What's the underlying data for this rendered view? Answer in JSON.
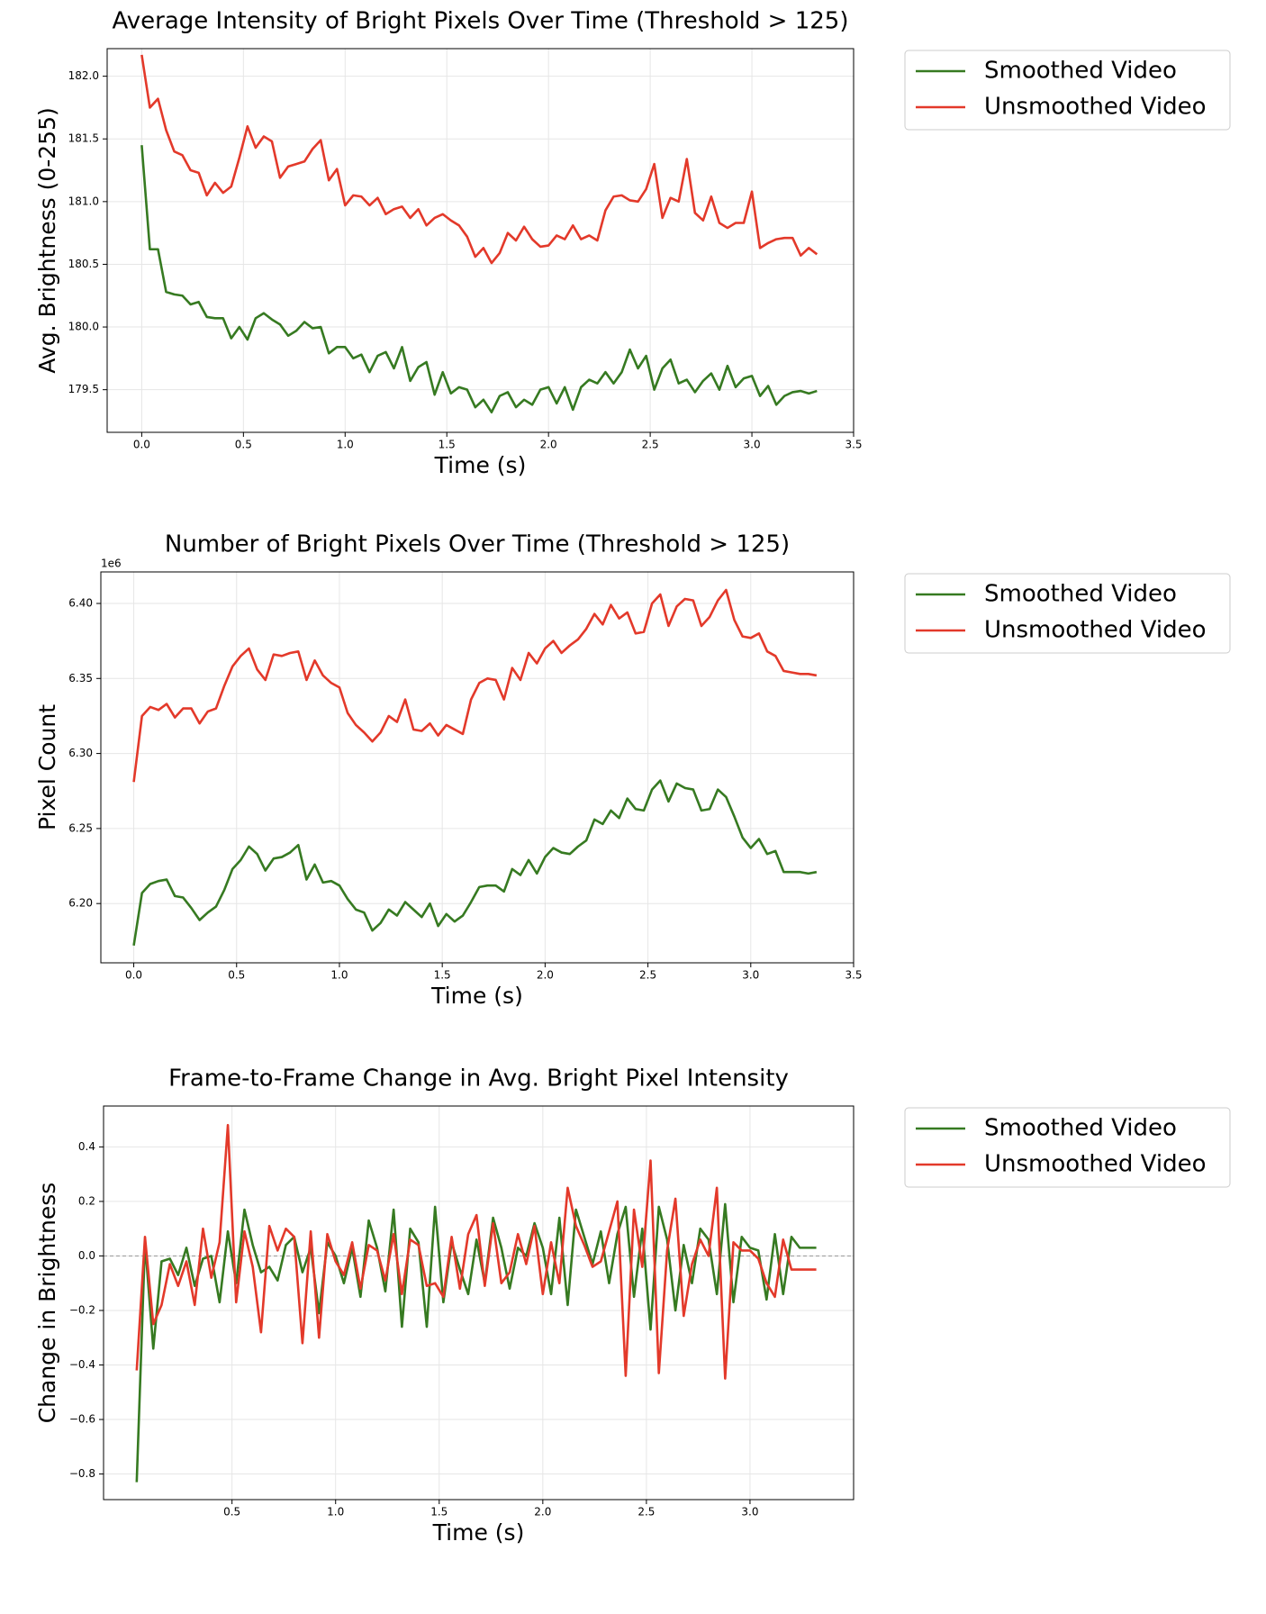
{
  "chart_data": [
    {
      "type": "line",
      "title": "Average Intensity of Bright Pixels Over Time (Threshold > 125)",
      "xlabel": "Time (s)",
      "ylabel": "Avg. Brightness (0-255)",
      "grid": true,
      "legend": "right",
      "x": [
        0,
        0.04,
        0.08,
        0.12,
        0.16,
        0.2,
        0.24,
        0.28,
        0.32,
        0.36,
        0.4,
        0.44,
        0.48,
        0.52,
        0.56,
        0.6,
        0.64,
        0.68,
        0.72,
        0.76,
        0.8,
        0.84,
        0.88,
        0.92,
        0.96,
        1,
        1.04,
        1.08,
        1.12,
        1.16,
        1.2,
        1.24,
        1.28,
        1.32,
        1.36,
        1.4,
        1.44,
        1.48,
        1.52,
        1.56,
        1.6,
        1.64,
        1.68,
        1.72,
        1.76,
        1.8,
        1.84,
        1.88,
        1.92,
        1.96,
        2,
        2.04,
        2.08,
        2.12,
        2.16,
        2.2,
        2.24,
        2.28,
        2.32,
        2.36,
        2.4,
        2.44,
        2.48,
        2.52,
        2.56,
        2.6,
        2.64,
        2.68,
        2.72,
        2.76,
        2.8,
        2.84,
        2.88,
        2.92,
        2.96,
        3,
        3.04,
        3.08,
        3.12,
        3.16,
        3.2,
        3.24,
        3.28,
        3.32
      ],
      "xlim": [
        -0.17,
        3.5
      ],
      "xticks": [
        {
          "value": 0,
          "label": "0.0"
        },
        0.5,
        {
          "value": 1,
          "label": "1.0"
        },
        1.5,
        {
          "value": 2,
          "label": "2.0"
        },
        2.5,
        {
          "value": 3,
          "label": "3.0"
        },
        3.5
      ],
      "ylim": [
        179.16,
        182.22
      ],
      "yticks": [
        179.5,
        {
          "value": 180,
          "label": "180.0"
        },
        180.5,
        {
          "value": 181,
          "label": "181.0"
        },
        181.5,
        {
          "value": 182,
          "label": "182.0"
        }
      ],
      "series": [
        {
          "name": "Smoothed Video",
          "color": "#367a21",
          "values": [
            181.45,
            180.62,
            180.62,
            180.28,
            180.26,
            180.25,
            180.18,
            180.2,
            180.08,
            180.07,
            180.07,
            179.91,
            180.0,
            179.9,
            180.07,
            180.11,
            180.06,
            180.02,
            179.93,
            179.97,
            180.04,
            179.99,
            180.0,
            179.79,
            179.84,
            179.84,
            179.75,
            179.78,
            179.64,
            179.77,
            179.8,
            179.67,
            179.84,
            179.57,
            179.68,
            179.72,
            179.46,
            179.64,
            179.47,
            179.52,
            179.5,
            179.36,
            179.42,
            179.32,
            179.45,
            179.48,
            179.36,
            179.42,
            179.38,
            179.5,
            179.52,
            179.39,
            179.52,
            179.34,
            179.52,
            179.58,
            179.55,
            179.64,
            179.55,
            179.64,
            179.82,
            179.67,
            179.77,
            179.5,
            179.67,
            179.74,
            179.55,
            179.58,
            179.48,
            179.57,
            179.63,
            179.5,
            179.69,
            179.52,
            179.59,
            179.61,
            179.45,
            179.53,
            179.38,
            179.45,
            179.48,
            179.49,
            179.47,
            179.49
          ]
        },
        {
          "name": "Unsmoothed Video",
          "color": "#e3392a",
          "values": [
            182.17,
            181.75,
            181.82,
            181.57,
            181.4,
            181.37,
            181.25,
            181.23,
            181.05,
            181.15,
            181.07,
            181.12,
            181.35,
            181.6,
            181.43,
            181.52,
            181.48,
            181.19,
            181.28,
            181.3,
            181.32,
            181.42,
            181.49,
            181.17,
            181.26,
            180.97,
            181.05,
            181.04,
            180.97,
            181.03,
            180.9,
            180.94,
            180.96,
            180.87,
            180.94,
            180.81,
            180.87,
            180.9,
            180.85,
            180.81,
            180.72,
            180.56,
            180.63,
            180.51,
            180.59,
            180.75,
            180.69,
            180.8,
            180.7,
            180.64,
            180.65,
            180.73,
            180.7,
            180.81,
            180.7,
            180.73,
            180.69,
            180.93,
            181.04,
            181.05,
            181.01,
            181.0,
            181.1,
            181.3,
            180.87,
            181.03,
            181.0,
            181.34,
            180.91,
            180.85,
            181.04,
            180.83,
            180.79,
            180.83,
            180.83,
            181.08,
            180.63,
            180.67,
            180.7,
            180.71,
            180.71,
            180.57,
            180.63,
            180.58
          ]
        }
      ]
    },
    {
      "type": "line",
      "title": "Number of Bright Pixels Over Time (Threshold > 125)",
      "xlabel": "Time (s)",
      "ylabel": "Pixel Count",
      "offset_label": "1e6",
      "grid": true,
      "legend": "right",
      "x": [
        0,
        0.04,
        0.08,
        0.12,
        0.16,
        0.2,
        0.24,
        0.28,
        0.32,
        0.36,
        0.4,
        0.44,
        0.48,
        0.52,
        0.56,
        0.6,
        0.64,
        0.68,
        0.72,
        0.76,
        0.8,
        0.84,
        0.88,
        0.92,
        0.96,
        1,
        1.04,
        1.08,
        1.12,
        1.16,
        1.2,
        1.24,
        1.28,
        1.32,
        1.36,
        1.4,
        1.44,
        1.48,
        1.52,
        1.56,
        1.6,
        1.64,
        1.68,
        1.72,
        1.76,
        1.8,
        1.84,
        1.88,
        1.92,
        1.96,
        2,
        2.04,
        2.08,
        2.12,
        2.16,
        2.2,
        2.24,
        2.28,
        2.32,
        2.36,
        2.4,
        2.44,
        2.48,
        2.52,
        2.56,
        2.6,
        2.64,
        2.68,
        2.72,
        2.76,
        2.8,
        2.84,
        2.88,
        2.92,
        2.96,
        3,
        3.04,
        3.08,
        3.12,
        3.16,
        3.2,
        3.24,
        3.28,
        3.32
      ],
      "xlim": [
        -0.16,
        3.5
      ],
      "xticks": [
        {
          "value": 0,
          "label": "0.0"
        },
        0.5,
        {
          "value": 1,
          "label": "1.0"
        },
        1.5,
        {
          "value": 2,
          "label": "2.0"
        },
        2.5,
        {
          "value": 3,
          "label": "3.0"
        },
        3.5
      ],
      "ylim": [
        6.1605,
        6.421
      ],
      "yticks": [
        {
          "value": 6.2,
          "label": "6.20"
        },
        6.25,
        {
          "value": 6.3,
          "label": "6.30"
        },
        6.35,
        {
          "value": 6.4,
          "label": "6.40"
        }
      ],
      "series": [
        {
          "name": "Smoothed Video",
          "color": "#367a21",
          "values": [
            6.172,
            6.207,
            6.213,
            6.215,
            6.216,
            6.205,
            6.204,
            6.197,
            6.189,
            6.194,
            6.198,
            6.209,
            6.223,
            6.229,
            6.238,
            6.233,
            6.222,
            6.23,
            6.231,
            6.234,
            6.239,
            6.216,
            6.226,
            6.214,
            6.215,
            6.212,
            6.203,
            6.196,
            6.194,
            6.182,
            6.187,
            6.196,
            6.192,
            6.201,
            6.196,
            6.191,
            6.2,
            6.185,
            6.193,
            6.188,
            6.192,
            6.201,
            6.211,
            6.212,
            6.212,
            6.208,
            6.223,
            6.219,
            6.229,
            6.22,
            6.231,
            6.237,
            6.234,
            6.233,
            6.238,
            6.242,
            6.256,
            6.253,
            6.262,
            6.257,
            6.27,
            6.263,
            6.262,
            6.276,
            6.282,
            6.268,
            6.28,
            6.277,
            6.276,
            6.262,
            6.263,
            6.276,
            6.271,
            6.258,
            6.244,
            6.237,
            6.243,
            6.233,
            6.235,
            6.221,
            6.221,
            6.221,
            6.22,
            6.221
          ]
        },
        {
          "name": "Unsmoothed Video",
          "color": "#e3392a",
          "values": [
            6.281,
            6.325,
            6.331,
            6.329,
            6.333,
            6.324,
            6.33,
            6.33,
            6.32,
            6.328,
            6.33,
            6.345,
            6.358,
            6.365,
            6.37,
            6.356,
            6.349,
            6.366,
            6.365,
            6.367,
            6.368,
            6.349,
            6.362,
            6.352,
            6.347,
            6.344,
            6.327,
            6.319,
            6.314,
            6.308,
            6.314,
            6.325,
            6.321,
            6.336,
            6.316,
            6.315,
            6.32,
            6.312,
            6.319,
            6.316,
            6.313,
            6.336,
            6.347,
            6.35,
            6.349,
            6.336,
            6.357,
            6.349,
            6.367,
            6.36,
            6.37,
            6.375,
            6.367,
            6.372,
            6.376,
            6.383,
            6.393,
            6.386,
            6.399,
            6.39,
            6.394,
            6.38,
            6.381,
            6.4,
            6.406,
            6.385,
            6.398,
            6.403,
            6.402,
            6.385,
            6.391,
            6.402,
            6.409,
            6.389,
            6.378,
            6.377,
            6.38,
            6.368,
            6.365,
            6.355,
            6.354,
            6.353,
            6.353,
            6.352
          ]
        }
      ]
    },
    {
      "type": "line",
      "title": "Frame-to-Frame Change in Avg. Bright Pixel Intensity",
      "xlabel": "Time (s)",
      "ylabel": "Change in Brightness",
      "grid": true,
      "zero_line": true,
      "legend": "right",
      "x": [
        0.04,
        0.08,
        0.12,
        0.16,
        0.2,
        0.24,
        0.28,
        0.32,
        0.36,
        0.4,
        0.44,
        0.48,
        0.52,
        0.56,
        0.6,
        0.64,
        0.68,
        0.72,
        0.76,
        0.8,
        0.84,
        0.88,
        0.92,
        0.96,
        1,
        1.04,
        1.08,
        1.12,
        1.16,
        1.2,
        1.24,
        1.28,
        1.32,
        1.36,
        1.4,
        1.44,
        1.48,
        1.52,
        1.56,
        1.6,
        1.64,
        1.68,
        1.72,
        1.76,
        1.8,
        1.84,
        1.88,
        1.92,
        1.96,
        2,
        2.04,
        2.08,
        2.12,
        2.16,
        2.2,
        2.24,
        2.28,
        2.32,
        2.36,
        2.4,
        2.44,
        2.48,
        2.52,
        2.56,
        2.6,
        2.64,
        2.68,
        2.72,
        2.76,
        2.8,
        2.84,
        2.88,
        2.92,
        2.96,
        3,
        3.04,
        3.08,
        3.12,
        3.16,
        3.2,
        3.24,
        3.28,
        3.32
      ],
      "xlim": [
        -0.12,
        3.5
      ],
      "xticks": [
        0.5,
        {
          "value": 1,
          "label": "1.0"
        },
        1.5,
        {
          "value": 2,
          "label": "2.0"
        },
        2.5,
        {
          "value": 3,
          "label": "3.0"
        }
      ],
      "ylim": [
        -0.894,
        0.55
      ],
      "yticks": [
        {
          "value": -0.8,
          "label": "−0.8"
        },
        {
          "value": -0.6,
          "label": "−0.6"
        },
        {
          "value": -0.4,
          "label": "−0.4"
        },
        {
          "value": -0.2,
          "label": "−0.2"
        },
        {
          "value": 0,
          "label": "0.0"
        },
        0.2,
        0.4
      ],
      "series": [
        {
          "name": "Smoothed Video",
          "color": "#367a21",
          "values": [
            -0.83,
            0.05,
            -0.34,
            -0.02,
            -0.01,
            -0.07,
            0.03,
            -0.11,
            -0.01,
            0.0,
            -0.17,
            0.09,
            -0.1,
            0.17,
            0.04,
            -0.06,
            -0.04,
            -0.09,
            0.04,
            0.07,
            -0.06,
            0.03,
            -0.21,
            0.05,
            0.0,
            -0.1,
            0.03,
            -0.15,
            0.13,
            0.03,
            -0.13,
            0.17,
            -0.26,
            0.1,
            0.05,
            -0.26,
            0.18,
            -0.17,
            0.05,
            -0.05,
            -0.14,
            0.06,
            -0.1,
            0.14,
            0.03,
            -0.12,
            0.03,
            0.0,
            0.12,
            0.03,
            -0.14,
            0.14,
            -0.18,
            0.17,
            0.07,
            -0.03,
            0.09,
            -0.1,
            0.08,
            0.18,
            -0.15,
            0.1,
            -0.27,
            0.18,
            0.06,
            -0.2,
            0.04,
            -0.1,
            0.1,
            0.06,
            -0.14,
            0.19,
            -0.17,
            0.07,
            0.03,
            0.02,
            -0.16,
            0.08,
            -0.14,
            0.07,
            0.03,
            0.03,
            0.03
          ]
        },
        {
          "name": "Unsmoothed Video",
          "color": "#e3392a",
          "values": [
            -0.42,
            0.07,
            -0.25,
            -0.18,
            -0.03,
            -0.11,
            -0.02,
            -0.18,
            0.1,
            -0.08,
            0.05,
            0.48,
            -0.17,
            0.09,
            -0.04,
            -0.28,
            0.11,
            0.02,
            0.1,
            0.07,
            -0.32,
            0.09,
            -0.3,
            0.08,
            -0.02,
            -0.07,
            0.05,
            -0.12,
            0.04,
            0.02,
            -0.09,
            0.08,
            -0.14,
            0.06,
            0.04,
            -0.11,
            -0.1,
            -0.15,
            0.07,
            -0.12,
            0.08,
            0.15,
            -0.11,
            0.12,
            -0.1,
            -0.06,
            0.08,
            -0.03,
            0.11,
            -0.14,
            0.05,
            -0.1,
            0.25,
            0.11,
            0.04,
            -0.04,
            -0.02,
            0.09,
            0.2,
            -0.44,
            0.17,
            -0.04,
            0.35,
            -0.43,
            0.02,
            0.21,
            -0.22,
            -0.03,
            0.06,
            0.0,
            0.25,
            -0.45,
            0.05,
            0.02,
            0.02,
            -0.01,
            -0.1,
            -0.15,
            0.06,
            -0.05,
            -0.05,
            -0.05,
            -0.05
          ]
        }
      ]
    }
  ]
}
